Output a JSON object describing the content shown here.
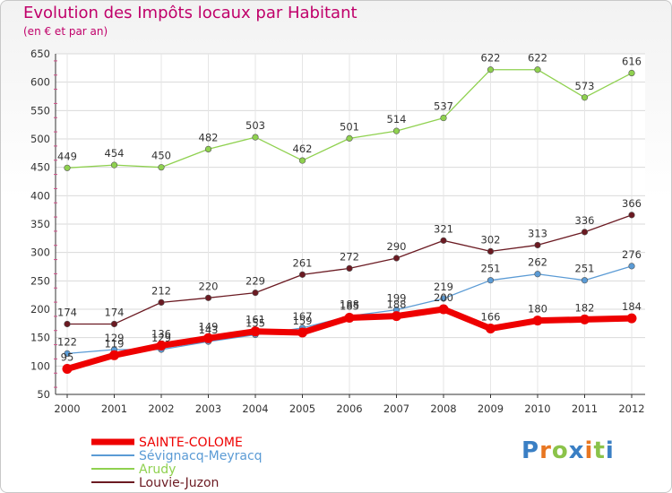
{
  "chart_data": {
    "type": "line",
    "title": "Evolution des Impôts locaux par Habitant",
    "subtitle": "(en € et par an)",
    "xlabel": "",
    "ylabel": "",
    "ylim": [
      50,
      650
    ],
    "yticks": [
      50,
      100,
      150,
      200,
      250,
      300,
      350,
      400,
      450,
      500,
      550,
      600,
      650
    ],
    "grid": true,
    "legend_position": "bottom-left",
    "x": [
      "2000",
      "2001",
      "2002",
      "2003",
      "2004",
      "2005",
      "2006",
      "2007",
      "2008",
      "2009",
      "2010",
      "2011",
      "2012"
    ],
    "series": [
      {
        "name": "Louvie-Juzon",
        "color": "#6b1a22",
        "values": [
          174,
          174,
          212,
          220,
          229,
          261,
          272,
          290,
          321,
          302,
          313,
          336,
          366
        ]
      },
      {
        "name": "Arudy",
        "color": "#8fd14f",
        "values": [
          449,
          454,
          450,
          482,
          503,
          462,
          501,
          514,
          537,
          622,
          622,
          573,
          616
        ]
      },
      {
        "name": "Sévignacq-Meyracq",
        "color": "#5b9bd5",
        "values": [
          122,
          129,
          129,
          143,
          155,
          167,
          188,
          199,
          219,
          251,
          262,
          251,
          276
        ]
      },
      {
        "name": "SAINTE-COLOME",
        "color": "#ee0000",
        "values": [
          95,
          119,
          136,
          149,
          161,
          159,
          185,
          188,
          200,
          166,
          180,
          182,
          184
        ]
      }
    ],
    "value_labels": {
      "Louvie-Juzon": [
        "174",
        "174",
        "212",
        "220",
        "229",
        "261",
        "272",
        "290",
        "321",
        "302",
        "313",
        "336",
        "366"
      ],
      "Arudy": [
        "449",
        "454",
        "450",
        "482",
        "503",
        "462",
        "501",
        "514",
        "537",
        "622",
        "622",
        "573",
        "616"
      ],
      "Sévignacq-Meyracq": [
        "122",
        "129",
        "129",
        "143",
        "155",
        "167",
        "188",
        "199",
        "219",
        "251",
        "262",
        "251",
        "276"
      ],
      "SAINTE-COLOME": [
        "95",
        "119",
        "136",
        "149",
        "161",
        "159",
        "185",
        "188",
        "200",
        "166",
        "180",
        "182",
        "184"
      ]
    },
    "legend": [
      "SAINTE-COLOME",
      "Sévignacq-Meyracq",
      "Arudy",
      "Louvie-Juzon"
    ]
  },
  "branding": {
    "logo_text": "Proxiti"
  }
}
